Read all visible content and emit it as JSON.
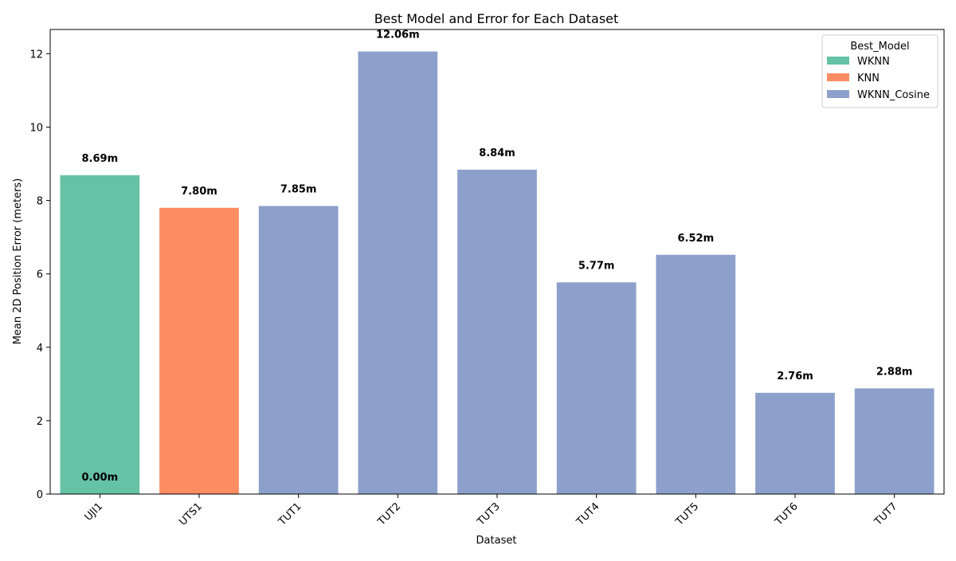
{
  "chart_data": {
    "type": "bar",
    "title": "Best Model and Error for Each Dataset",
    "xlabel": "Dataset",
    "ylabel": "Mean 2D Position Error (meters)",
    "categories": [
      "UJI1",
      "UTS1",
      "TUT1",
      "TUT2",
      "TUT3",
      "TUT4",
      "TUT5",
      "TUT6",
      "TUT7"
    ],
    "values": [
      8.69,
      7.8,
      7.85,
      12.06,
      8.84,
      5.77,
      6.52,
      2.76,
      2.88
    ],
    "models": [
      "WKNN",
      "KNN",
      "WKNN_Cosine",
      "WKNN_Cosine",
      "WKNN_Cosine",
      "WKNN_Cosine",
      "WKNN_Cosine",
      "WKNN_Cosine",
      "WKNN_Cosine"
    ],
    "bar_labels": [
      "8.69m",
      "7.80m",
      "7.85m",
      "12.06m",
      "8.84m",
      "5.77m",
      "6.52m",
      "2.76m",
      "2.88m"
    ],
    "extra_annotations": [
      {
        "category": "UJI1",
        "value": 0.0,
        "text": "0.00m"
      }
    ],
    "ylim": [
      0,
      12.66
    ],
    "yticks": [
      0,
      2,
      4,
      6,
      8,
      10,
      12
    ],
    "ytick_labels": [
      "0",
      "2",
      "4",
      "6",
      "8",
      "10",
      "12"
    ],
    "grid": false,
    "legend": {
      "title": "Best_Model",
      "placement": "top-right",
      "entries": [
        {
          "name": "WKNN",
          "color": "#66c2a5"
        },
        {
          "name": "KNN",
          "color": "#fc8d62"
        },
        {
          "name": "WKNN_Cosine",
          "color": "#8da0cb"
        }
      ]
    }
  }
}
